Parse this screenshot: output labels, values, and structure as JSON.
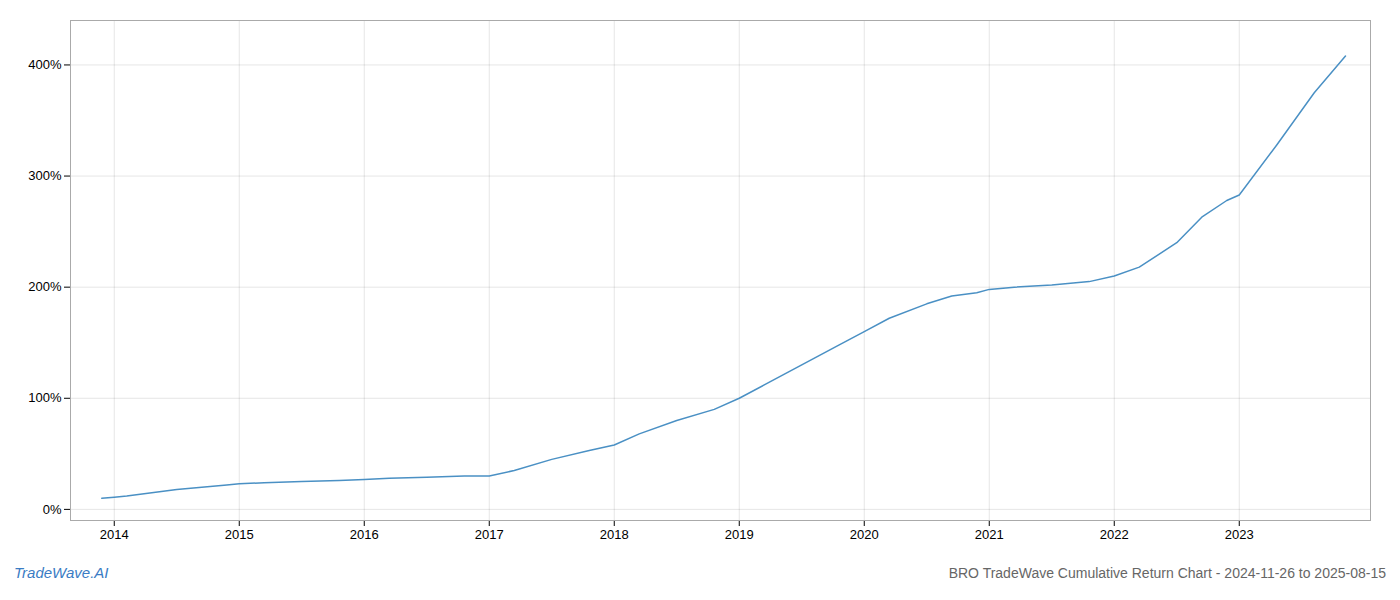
{
  "chart_data": {
    "type": "line",
    "title": "BRO TradeWave Cumulative Return Chart - 2024-11-26 to 2025-08-15",
    "annotations": [
      "TradeWave.AI"
    ],
    "x": [
      2013.9,
      2014.0,
      2014.1,
      2014.3,
      2014.5,
      2014.7,
      2014.9,
      2015.0,
      2015.2,
      2015.5,
      2015.8,
      2016.0,
      2016.2,
      2016.5,
      2016.8,
      2017.0,
      2017.2,
      2017.5,
      2017.8,
      2018.0,
      2018.2,
      2018.5,
      2018.8,
      2019.0,
      2019.2,
      2019.5,
      2019.8,
      2020.0,
      2020.2,
      2020.5,
      2020.7,
      2020.9,
      2021.0,
      2021.2,
      2021.5,
      2021.8,
      2022.0,
      2022.2,
      2022.5,
      2022.7,
      2022.9,
      2023.0,
      2023.3,
      2023.6,
      2023.85
    ],
    "values": [
      10,
      11,
      12,
      15,
      18,
      20,
      22,
      23,
      24,
      25,
      26,
      27,
      28,
      29,
      30,
      30,
      35,
      45,
      53,
      58,
      68,
      80,
      90,
      100,
      112,
      130,
      148,
      160,
      172,
      185,
      192,
      195,
      198,
      200,
      202,
      205,
      210,
      218,
      240,
      263,
      278,
      283,
      328,
      375,
      408
    ],
    "color": "#4a90c4",
    "xlim": [
      2013.65,
      2024.05
    ],
    "xticks": [
      2014,
      2015,
      2016,
      2017,
      2018,
      2019,
      2020,
      2021,
      2022,
      2023
    ],
    "ylim": [
      -10,
      440
    ],
    "yticks": [
      {
        "value": 0,
        "label": "0%"
      },
      {
        "value": 100,
        "label": "100%"
      },
      {
        "value": 200,
        "label": "200%"
      },
      {
        "value": 300,
        "label": "300%"
      },
      {
        "value": 400,
        "label": "400%"
      }
    ],
    "grid": true
  }
}
